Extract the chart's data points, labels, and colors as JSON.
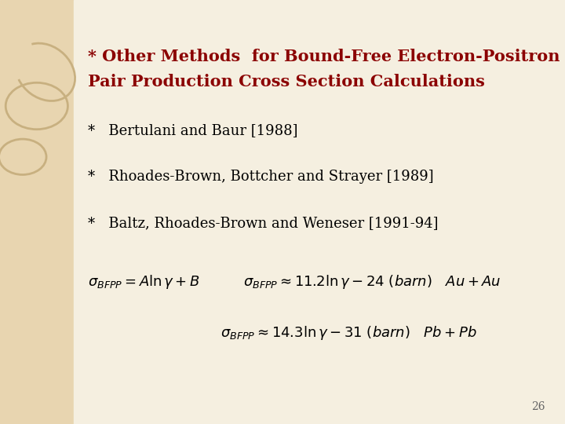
{
  "bg_color": "#f5efe0",
  "left_panel_color": "#e8d5b0",
  "slide_bg": "#ffffff",
  "title_color": "#8b0000",
  "title_line1": "* Other Methods  for Bound-Free Electron-Positron",
  "title_line2": "Pair Production Cross Section Calculations",
  "bullet1": "*   Bertulani and Baur [1988]",
  "bullet2": "*   Rhoades-Brown, Bottcher and Strayer [1989]",
  "bullet3": "*   Baltz, Rhoades-Brown and Weneser [1991-94]",
  "formula1": "$\\sigma_{BFPP} = A \\ln \\gamma + B$",
  "formula2": "$\\sigma_{BFPP} \\approx 11.2 \\ln \\gamma - 24 \\ (barn) \\quad Au + Au$",
  "formula3": "$\\sigma_{BFPP} \\approx 14.3 \\ln \\gamma - 31 \\ (barn) \\quad Pb + Pb$",
  "page_num": "26",
  "title_fontsize": 15,
  "bullet_fontsize": 13,
  "formula_fontsize": 13
}
